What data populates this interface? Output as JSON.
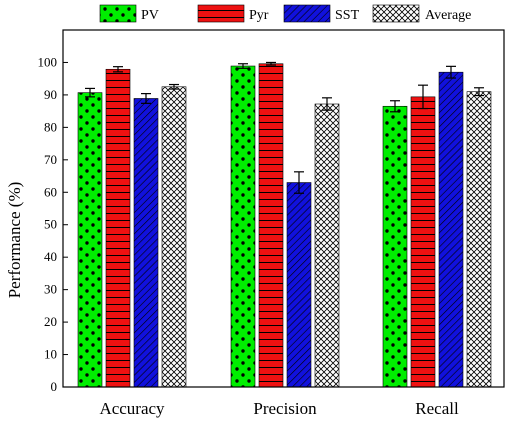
{
  "chart_data": {
    "type": "bar",
    "title": "",
    "xlabel": "",
    "ylabel": "Performance (%)",
    "ylim": [
      0,
      110
    ],
    "yticks": [
      0,
      10,
      20,
      30,
      40,
      50,
      60,
      70,
      80,
      90,
      100
    ],
    "categories": [
      "Accuracy",
      "Precision",
      "Recall"
    ],
    "legend_position": "top",
    "grid": false,
    "series": [
      {
        "name": "PV",
        "values": [
          90.7,
          98.9,
          86.5
        ],
        "errors": [
          1.3,
          0.7,
          1.7
        ],
        "color": "#00ee00",
        "pattern": "dots"
      },
      {
        "name": "Pyr",
        "values": [
          97.9,
          99.6,
          89.4
        ],
        "errors": [
          0.8,
          0.4,
          3.6
        ],
        "color": "#ee1111",
        "pattern": "horizontal-lines"
      },
      {
        "name": "SST",
        "values": [
          88.9,
          63.0,
          97.0
        ],
        "errors": [
          1.5,
          3.3,
          1.8
        ],
        "color": "#1111dd",
        "pattern": "diagonal-lines"
      },
      {
        "name": "Average",
        "values": [
          92.5,
          87.2,
          91.0
        ],
        "errors": [
          0.7,
          1.9,
          1.2
        ],
        "color": "#ffffff",
        "pattern": "crosshatch"
      }
    ]
  }
}
